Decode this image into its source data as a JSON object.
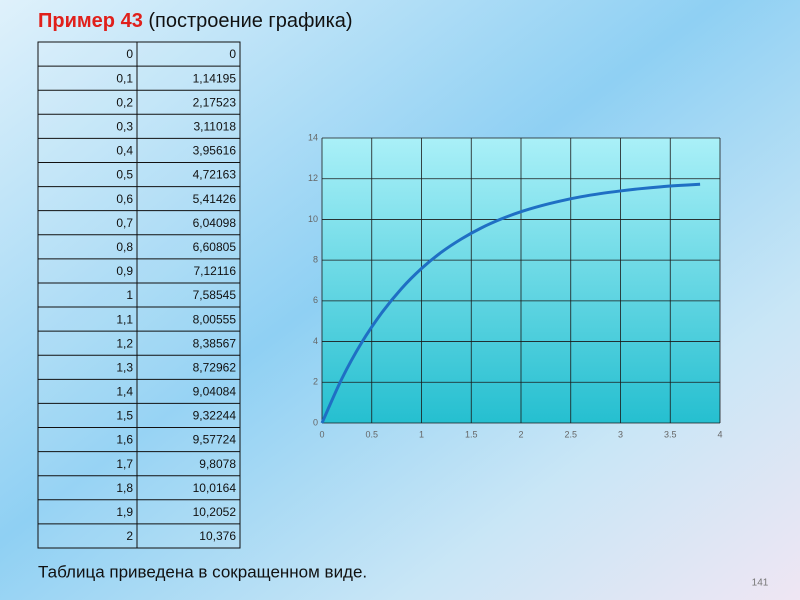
{
  "header": {
    "title_bold": "Пример 43",
    "title_rest": "(построение графика)"
  },
  "table": {
    "rows": [
      [
        "0",
        "0"
      ],
      [
        "0,1",
        "1,14195"
      ],
      [
        "0,2",
        "2,17523"
      ],
      [
        "0,3",
        "3,11018"
      ],
      [
        "0,4",
        "3,95616"
      ],
      [
        "0,5",
        "4,72163"
      ],
      [
        "0,6",
        "5,41426"
      ],
      [
        "0,7",
        "6,04098"
      ],
      [
        "0,8",
        "6,60805"
      ],
      [
        "0,9",
        "7,12116"
      ],
      [
        "1",
        "7,58545"
      ],
      [
        "1,1",
        "8,00555"
      ],
      [
        "1,2",
        "8,38567"
      ],
      [
        "1,3",
        "8,72962"
      ],
      [
        "1,4",
        "9,04084"
      ],
      [
        "1,5",
        "9,32244"
      ],
      [
        "1,6",
        "9,57724"
      ],
      [
        "1,7",
        "9,8078"
      ],
      [
        "1,8",
        "10,0164"
      ],
      [
        "1,9",
        "10,2052"
      ],
      [
        "2",
        "10,376"
      ]
    ]
  },
  "chart_data": {
    "type": "line",
    "x": [
      0,
      0.2,
      0.4,
      0.6,
      0.8,
      1.0,
      1.2,
      1.4,
      1.6,
      1.8,
      2.0,
      2.2,
      2.4,
      2.6,
      2.8,
      3.0,
      3.2,
      3.4,
      3.6,
      3.8
    ],
    "values": [
      0,
      2.18,
      3.96,
      5.41,
      6.61,
      7.59,
      8.39,
      9.04,
      9.58,
      10.02,
      10.38,
      10.67,
      10.91,
      11.11,
      11.27,
      11.4,
      11.51,
      11.6,
      11.67,
      11.73
    ],
    "color": "#1f6fc4",
    "xlim": [
      0,
      4
    ],
    "xticks": [
      0,
      0.5,
      1,
      1.5,
      2,
      2.5,
      3,
      3.5,
      4
    ],
    "ylim": [
      0,
      14
    ],
    "yticks": [
      0,
      2,
      4,
      6,
      8,
      10,
      12,
      14
    ],
    "grid": true
  },
  "footer": {
    "note": "Таблица приведена в сокращенном виде.",
    "page_number": "141"
  }
}
